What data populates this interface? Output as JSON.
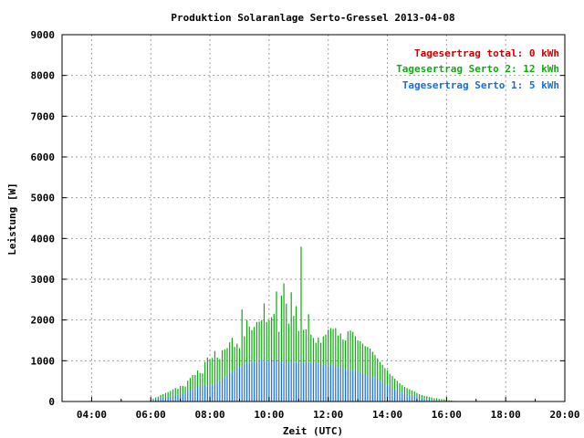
{
  "chart_data": {
    "type": "bar",
    "title": "Produktion Solaranlage Serto-Gressel 2013-04-08",
    "xlabel": "Zeit (UTC)",
    "ylabel": "Leistung [W]",
    "ylim": [
      0,
      9000
    ],
    "yticks": [
      "0",
      "1000",
      "2000",
      "3000",
      "4000",
      "5000",
      "6000",
      "7000",
      "8000",
      "9000"
    ],
    "xticks": [
      "04:00",
      "06:00",
      "08:00",
      "10:00",
      "12:00",
      "14:00",
      "16:00",
      "18:00",
      "20:00"
    ],
    "xlim_hours": [
      3,
      20
    ],
    "grid": true,
    "stacked": true,
    "legend_position": "top-right",
    "bar_interval_minutes": 5,
    "x_start": "05:00",
    "legend": [
      {
        "label": "Tagesertrag total: 0 kWh",
        "color": "#cc0000"
      },
      {
        "label": "Tagesertrag Serto 2: 12 kWh",
        "color": "#11aa11"
      },
      {
        "label": "Tagesertrag Serto 1: 5 kWh",
        "color": "#1a6ed6"
      }
    ],
    "series": [
      {
        "name": "Tagesertrag Serto 1",
        "color": "#1a6ed6",
        "values": [
          0,
          0,
          0,
          0,
          0,
          0,
          0,
          0,
          0,
          0,
          0,
          0,
          30,
          40,
          50,
          60,
          80,
          90,
          100,
          110,
          120,
          140,
          150,
          160,
          180,
          200,
          220,
          260,
          280,
          300,
          330,
          380,
          400,
          380,
          420,
          360,
          400,
          420,
          440,
          480,
          520,
          560,
          600,
          640,
          700,
          720,
          780,
          820,
          850,
          860,
          900,
          950,
          920,
          1000,
          980,
          950,
          1000,
          1050,
          980,
          1000,
          1000,
          1020,
          1000,
          1050,
          980,
          1000,
          950,
          1000,
          960,
          980,
          950,
          980,
          940,
          960,
          960,
          980,
          940,
          940,
          960,
          940,
          920,
          920,
          900,
          920,
          880,
          900,
          860,
          860,
          840,
          850,
          820,
          800,
          820,
          780,
          760,
          760,
          740,
          720,
          700,
          660,
          640,
          620,
          600,
          580,
          560,
          520,
          480,
          440,
          420,
          380,
          340,
          300,
          280,
          250,
          220,
          200,
          180,
          160,
          150,
          140,
          120,
          100,
          80,
          70,
          60,
          50,
          40,
          30,
          30,
          25,
          20,
          20,
          15,
          10,
          10,
          5,
          5,
          0,
          0,
          0,
          0,
          0
        ]
      },
      {
        "name": "Tagesertrag Serto 2",
        "color": "#11aa11",
        "values": [
          0,
          0,
          0,
          0,
          0,
          0,
          0,
          0,
          0,
          0,
          0,
          0,
          20,
          30,
          50,
          60,
          80,
          90,
          110,
          120,
          140,
          160,
          180,
          150,
          200,
          180,
          150,
          250,
          300,
          350,
          320,
          380,
          300,
          310,
          550,
          720,
          640,
          650,
          800,
          600,
          520,
          700,
          680,
          670,
          750,
          840,
          560,
          600,
          460,
          1400,
          700,
          1050,
          920,
          750,
          850,
          1000,
          960,
          950,
          1430,
          950,
          1000,
          1050,
          1150,
          1650,
          730,
          1600,
          1950,
          1400,
          950,
          1700,
          1150,
          1360,
          790,
          2840,
          800,
          790,
          1200,
          700,
          600,
          500,
          650,
          520,
          700,
          720,
          880,
          900,
          920,
          940,
          780,
          820,
          700,
          700,
          900,
          960,
          950,
          840,
          760,
          760,
          720,
          700,
          700,
          680,
          620,
          560,
          500,
          450,
          420,
          380,
          350,
          300,
          290,
          260,
          230,
          200,
          180,
          160,
          150,
          140,
          120,
          110,
          90,
          80,
          80,
          70,
          70,
          60,
          60,
          50,
          50,
          40,
          40,
          30,
          30,
          20,
          15,
          10,
          5,
          0,
          0,
          0,
          0,
          0
        ]
      }
    ]
  }
}
